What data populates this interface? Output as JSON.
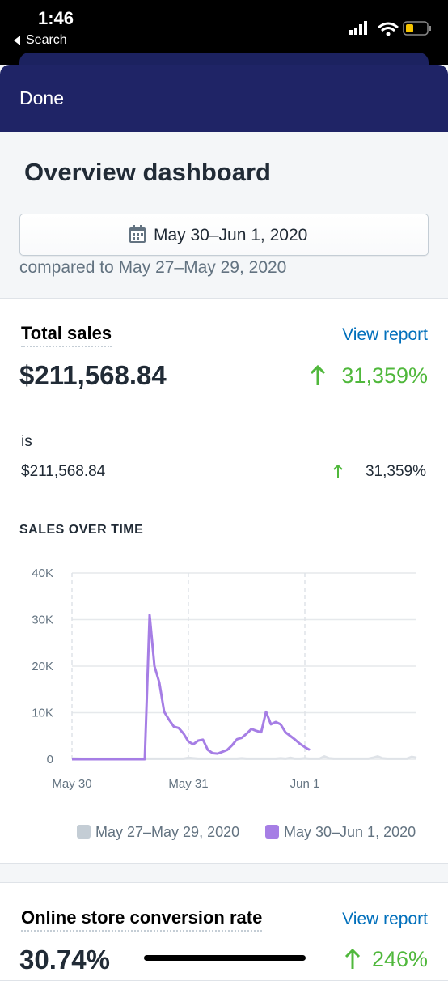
{
  "status_bar": {
    "time": "1:46",
    "back": "Search"
  },
  "nav": {
    "done": "Done"
  },
  "header": {
    "title": "Overview dashboard",
    "date_range": "May 30–Jun 1, 2020",
    "comparison": "compared to May 27–May 29, 2020"
  },
  "cards": [
    {
      "title": "Total sales",
      "link": "View report",
      "value": "$211,568.84",
      "change": "31,359%",
      "breakdown": {
        "label": "is",
        "value": "$211,568.84",
        "change": "31,359%"
      }
    },
    {
      "title": "Online store conversion rate",
      "link": "View report",
      "value": "30.74%",
      "change": "246%"
    }
  ],
  "chart_data": {
    "type": "line",
    "title": "SALES OVER TIME",
    "x": [
      0,
      1,
      2,
      3,
      4,
      5,
      6,
      7,
      8,
      9,
      10,
      11,
      12,
      13,
      14,
      15,
      16,
      17,
      18,
      19,
      20,
      21,
      22,
      23,
      24,
      25,
      26,
      27,
      28,
      29,
      30,
      31,
      32,
      33,
      34,
      35,
      36,
      37,
      38,
      39,
      40,
      41,
      42,
      43,
      44,
      45,
      46,
      47,
      48,
      49,
      50,
      51,
      52,
      53,
      54,
      55,
      56,
      57,
      58,
      59,
      60,
      61,
      62,
      63,
      64,
      65,
      66,
      67,
      68,
      69,
      70,
      71
    ],
    "xlim": [
      0,
      71
    ],
    "xticks": [
      {
        "value": 0,
        "label": "May 30"
      },
      {
        "value": 24,
        "label": "May 31"
      },
      {
        "value": 48,
        "label": "Jun 1"
      }
    ],
    "ylim": [
      0,
      40000
    ],
    "yticks": [
      0,
      {
        "value": 10000,
        "label": "10K"
      },
      {
        "value": 20000,
        "label": "20K"
      },
      {
        "value": 30000,
        "label": "30K"
      },
      {
        "value": 40000,
        "label": "40K"
      }
    ],
    "grid": true,
    "series": [
      {
        "name": "May 27–May 29, 2020",
        "color": "#dfe3e8",
        "values": [
          200,
          150,
          100,
          100,
          100,
          100,
          100,
          100,
          100,
          100,
          100,
          100,
          100,
          100,
          100,
          100,
          100,
          100,
          100,
          100,
          100,
          100,
          100,
          100,
          300,
          200,
          100,
          100,
          100,
          100,
          100,
          100,
          100,
          100,
          100,
          200,
          100,
          100,
          100,
          100,
          100,
          100,
          100,
          200,
          100,
          300,
          100,
          100,
          200,
          100,
          100,
          100,
          600,
          200,
          100,
          100,
          100,
          100,
          100,
          100,
          100,
          100,
          300,
          600,
          200,
          100,
          100,
          100,
          100,
          100,
          500,
          300
        ]
      },
      {
        "name": "May 30–Jun 1, 2020",
        "color": "#a67ee5",
        "values": [
          0,
          0,
          0,
          0,
          0,
          0,
          0,
          0,
          0,
          0,
          0,
          0,
          0,
          0,
          0,
          0,
          31000,
          20000,
          16500,
          10200,
          8500,
          7000,
          6700,
          5500,
          3800,
          3200,
          4000,
          4200,
          2000,
          1300,
          1200,
          1600,
          2000,
          3000,
          4300,
          4600,
          5500,
          6500,
          6100,
          5800,
          10200,
          7500,
          8000,
          7500,
          5800,
          5000,
          4200,
          3300,
          2600,
          2000,
          null,
          null,
          null,
          null,
          null,
          null,
          null,
          null,
          null,
          null,
          null,
          null,
          null,
          null,
          null,
          null,
          null,
          null,
          null,
          null,
          null,
          null
        ]
      }
    ]
  }
}
